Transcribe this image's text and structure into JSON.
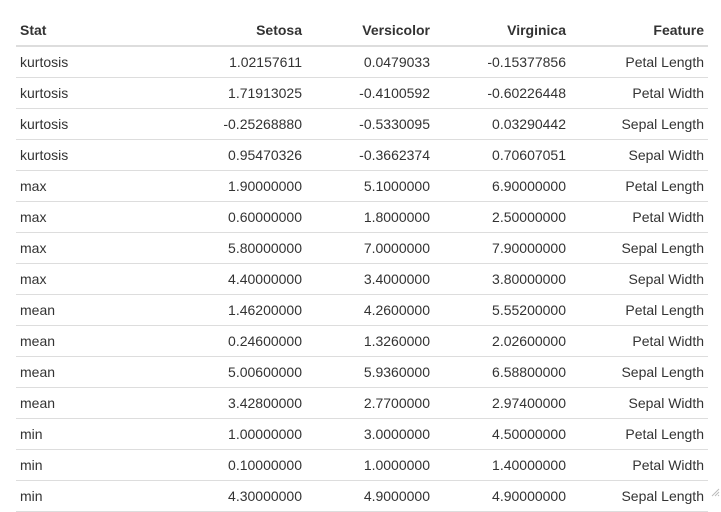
{
  "table": {
    "columns": [
      "Stat",
      "Setosa",
      "Versicolor",
      "Virginica",
      "Feature"
    ],
    "rows": [
      [
        "kurtosis",
        "1.02157611",
        "0.0479033",
        "-0.15377856",
        "Petal Length"
      ],
      [
        "kurtosis",
        "1.71913025",
        "-0.4100592",
        "-0.60226448",
        "Petal Width"
      ],
      [
        "kurtosis",
        "-0.25268880",
        "-0.5330095",
        "0.03290442",
        "Sepal Length"
      ],
      [
        "kurtosis",
        "0.95470326",
        "-0.3662374",
        "0.70607051",
        "Sepal Width"
      ],
      [
        "max",
        "1.90000000",
        "5.1000000",
        "6.90000000",
        "Petal Length"
      ],
      [
        "max",
        "0.60000000",
        "1.8000000",
        "2.50000000",
        "Petal Width"
      ],
      [
        "max",
        "5.80000000",
        "7.0000000",
        "7.90000000",
        "Sepal Length"
      ],
      [
        "max",
        "4.40000000",
        "3.4000000",
        "3.80000000",
        "Sepal Width"
      ],
      [
        "mean",
        "1.46200000",
        "4.2600000",
        "5.55200000",
        "Petal Length"
      ],
      [
        "mean",
        "0.24600000",
        "1.3260000",
        "2.02600000",
        "Petal Width"
      ],
      [
        "mean",
        "5.00600000",
        "5.9360000",
        "6.58800000",
        "Sepal Length"
      ],
      [
        "mean",
        "3.42800000",
        "2.7700000",
        "2.97400000",
        "Sepal Width"
      ],
      [
        "min",
        "1.00000000",
        "3.0000000",
        "4.50000000",
        "Petal Length"
      ],
      [
        "min",
        "0.10000000",
        "1.0000000",
        "1.40000000",
        "Petal Width"
      ],
      [
        "min",
        "4.30000000",
        "4.9000000",
        "4.90000000",
        "Sepal Length"
      ]
    ]
  },
  "icons": {
    "resize_grip": "resize-grip-icon"
  },
  "colors": {
    "text": "#333333",
    "rule": "#dddddd"
  }
}
